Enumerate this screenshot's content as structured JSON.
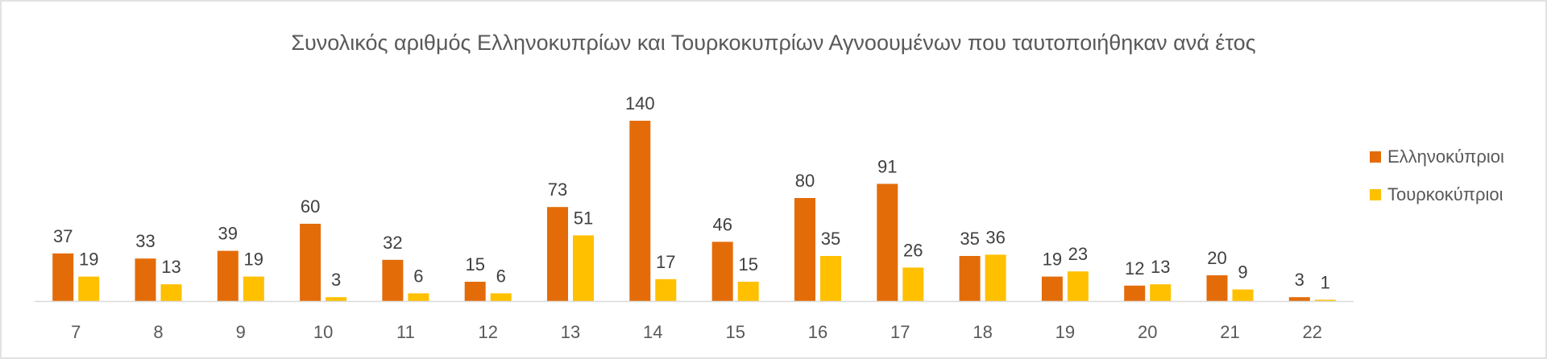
{
  "chart_data": {
    "type": "bar",
    "title": "Συνολικός αριθμός Ελληνοκυπρίων και Τουρκοκυπρίων Αγνοουμένων που ταυτοποιήθηκαν ανά έτος",
    "categories": [
      "7",
      "8",
      "9",
      "10",
      "11",
      "12",
      "13",
      "14",
      "15",
      "16",
      "17",
      "18",
      "19",
      "20",
      "21",
      "22"
    ],
    "series": [
      {
        "name": "Ελληνοκύπριοι",
        "color": "#E36C09",
        "values": [
          37,
          33,
          39,
          60,
          32,
          15,
          73,
          140,
          46,
          80,
          91,
          35,
          19,
          12,
          20,
          3
        ]
      },
      {
        "name": "Τουρκοκύπριοι",
        "color": "#FFC000",
        "values": [
          19,
          13,
          19,
          3,
          6,
          6,
          51,
          17,
          15,
          35,
          26,
          36,
          23,
          13,
          9,
          1
        ]
      }
    ],
    "ylim": [
      0,
      145
    ],
    "xlabel": "",
    "ylabel": "",
    "legend": "right",
    "grid": false
  }
}
